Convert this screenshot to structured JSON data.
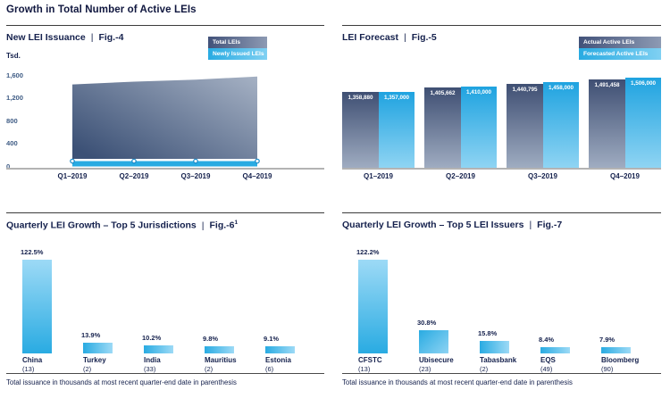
{
  "page": {
    "title": "Growth in Total Number of Active LEIs"
  },
  "sep": "|",
  "footnote": "Total issuance in thousands at most recent quarter-end date in parenthesis",
  "colors": {
    "navy_text": "#15214d",
    "axis_label_blue": "#3f5c85",
    "bright_blue": "#29abe2",
    "light_blue": "#96d8f6",
    "slate_dark": "#3f4f73",
    "slate_light": "#9facc1",
    "axis_line_gray": "#b3b3b3"
  },
  "chart_data": [
    {
      "id": "fig4",
      "type": "area",
      "title": "New LEI Issuance",
      "fig": "Fig.-4",
      "unit": "Tsd.",
      "categories": [
        "Q1–2019",
        "Q2–2019",
        "Q3–2019",
        "Q4–2019"
      ],
      "yticks": [
        "1,600",
        "1,200",
        "800",
        "400",
        "0"
      ],
      "ylim": [
        0,
        1600
      ],
      "legend_position": "top-right",
      "series": [
        {
          "name": "Total LEIs",
          "values": [
            1358.88,
            1405.662,
            1440.795,
            1491.458
          ]
        },
        {
          "name": "Newly Issued LEIs",
          "values": [
            60,
            60,
            60,
            60
          ]
        }
      ]
    },
    {
      "id": "fig5",
      "type": "bar",
      "title": "LEI Forecast",
      "fig": "Fig.-5",
      "categories": [
        "Q1–2019",
        "Q2–2019",
        "Q3–2019",
        "Q4–2019"
      ],
      "legend_position": "top-right",
      "series": [
        {
          "name": "Actual Active LEIs",
          "values": [
            1358880,
            1405662,
            1440795,
            1491458
          ],
          "labels": [
            "1,358,880",
            "1,405,662",
            "1,440,795",
            "1,491,458"
          ]
        },
        {
          "name": "Forecasted Active LEIs",
          "values": [
            1357000,
            1410000,
            1458000,
            1506000
          ],
          "labels": [
            "1,357,000",
            "1,410,000",
            "1,458,000",
            "1,506,000"
          ]
        }
      ]
    },
    {
      "id": "fig6",
      "type": "bar",
      "title": "Quarterly LEI Growth – Top 5 Jurisdictions",
      "fig": "Fig.-6",
      "fig_sup": "1",
      "categories": [
        "China",
        "Turkey",
        "India",
        "Mauritius",
        "Estonia"
      ],
      "issuance_thousands": [
        "(13)",
        "(2)",
        "(33)",
        "(2)",
        "(6)"
      ],
      "values": [
        122.5,
        13.9,
        10.2,
        9.8,
        9.1
      ],
      "labels": [
        "122.5%",
        "13.9%",
        "10.2%",
        "9.8%",
        "9.1%"
      ]
    },
    {
      "id": "fig7",
      "type": "bar",
      "title": "Quarterly LEI Growth – Top 5 LEI Issuers",
      "fig": "Fig.-7",
      "categories": [
        "CFSTC",
        "Ubisecure",
        "Tabasbank",
        "EQS",
        "Bloomberg"
      ],
      "issuance_thousands": [
        "(13)",
        "(23)",
        "(2)",
        "(49)",
        "(90)"
      ],
      "values": [
        122.2,
        30.8,
        15.8,
        8.4,
        7.9
      ],
      "labels": [
        "122.2%",
        "30.8%",
        "15.8%",
        "8.4%",
        "7.9%"
      ]
    }
  ]
}
